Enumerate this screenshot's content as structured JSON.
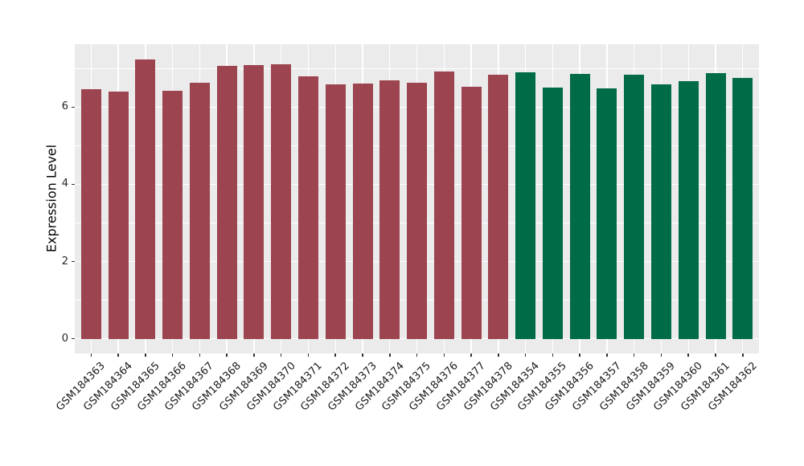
{
  "chart_data": {
    "type": "bar",
    "title": "",
    "xlabel": "",
    "ylabel": "Expression Level",
    "ylim": [
      0,
      7.63
    ],
    "yticks": [
      0,
      2,
      4,
      6
    ],
    "yticks_minor": [
      1,
      3,
      5,
      7
    ],
    "grid": "on",
    "legend": "none",
    "panel_bg": "#EBEBEB",
    "grid_color": "#FFFFFF",
    "axis_text_color": "#262626",
    "categories": [
      "GSM184363",
      "GSM184364",
      "GSM184365",
      "GSM184366",
      "GSM184367",
      "GSM184368",
      "GSM184369",
      "GSM184370",
      "GSM184371",
      "GSM184372",
      "GSM184373",
      "GSM184374",
      "GSM184375",
      "GSM184376",
      "GSM184377",
      "GSM184378",
      "GSM184354",
      "GSM184355",
      "GSM184356",
      "GSM184357",
      "GSM184358",
      "GSM184359",
      "GSM184360",
      "GSM184361",
      "GSM184362"
    ],
    "values": [
      6.47,
      6.4,
      7.24,
      6.42,
      6.63,
      7.07,
      7.09,
      7.12,
      6.8,
      6.6,
      6.62,
      6.7,
      6.63,
      6.93,
      6.53,
      6.83,
      6.9,
      6.5,
      6.85,
      6.48,
      6.83,
      6.6,
      6.67,
      6.88,
      6.76
    ],
    "colors": [
      "#9C4450",
      "#9C4450",
      "#9C4450",
      "#9C4450",
      "#9C4450",
      "#9C4450",
      "#9C4450",
      "#9C4450",
      "#9C4450",
      "#9C4450",
      "#9C4450",
      "#9C4450",
      "#9C4450",
      "#9C4450",
      "#9C4450",
      "#9C4450",
      "#006B47",
      "#006B47",
      "#006B47",
      "#006B47",
      "#006B47",
      "#006B47",
      "#006B47",
      "#006B47",
      "#006B47"
    ],
    "groups": [
      {
        "name": "GSM184363-GSM184378",
        "color": "#9C4450",
        "count": 16
      },
      {
        "name": "GSM184354-GSM184362",
        "color": "#006B47",
        "count": 9
      }
    ]
  }
}
